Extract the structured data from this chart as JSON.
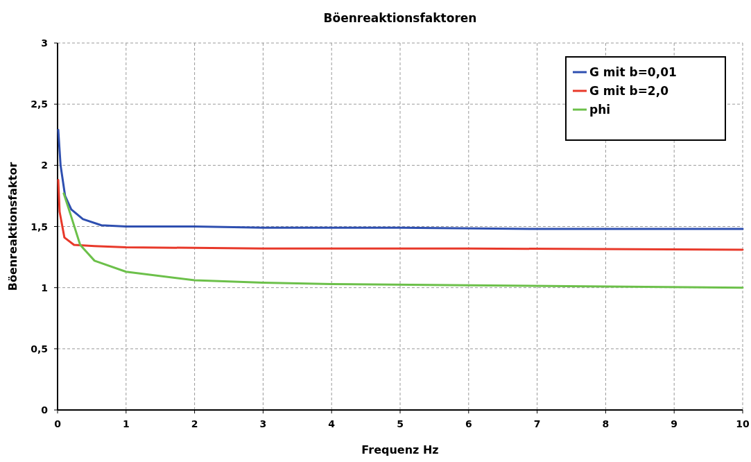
{
  "chart_data": {
    "type": "line",
    "title": "Böenreaktionsfaktoren",
    "xlabel": "Frequenz Hz",
    "ylabel": "Böenreaktionsfaktor",
    "xlim": [
      0,
      10
    ],
    "ylim": [
      0,
      3
    ],
    "xticks": [
      0,
      1,
      2,
      3,
      4,
      5,
      6,
      7,
      8,
      9,
      10
    ],
    "yticks": [
      {
        "value": 0,
        "label": "0"
      },
      {
        "value": 0.5,
        "label": "0,5"
      },
      {
        "value": 1,
        "label": "1"
      },
      {
        "value": 1.5,
        "label": "1,5"
      },
      {
        "value": 2,
        "label": "2"
      },
      {
        "value": 2.5,
        "label": "2,5"
      },
      {
        "value": 3,
        "label": "3"
      }
    ],
    "grid": true,
    "legend": "top right",
    "line_style": "solid",
    "series": [
      {
        "name": "G mit b=0,01",
        "color": "#2e4fb0",
        "x": [
          0.01,
          0.044,
          0.11,
          0.2,
          0.37,
          0.64,
          1,
          2,
          3,
          5,
          7,
          10
        ],
        "values": [
          2.29,
          2.0,
          1.75,
          1.64,
          1.56,
          1.51,
          1.5,
          1.5,
          1.49,
          1.49,
          1.48,
          1.48
        ]
      },
      {
        "name": "G mit b=2,0",
        "color": "#e8392a",
        "x": [
          0.01,
          0.03,
          0.1,
          0.24,
          0.54,
          1,
          3,
          6,
          10
        ],
        "values": [
          1.88,
          1.62,
          1.41,
          1.35,
          1.34,
          1.33,
          1.32,
          1.32,
          1.31
        ]
      },
      {
        "name": "phi",
        "color": "#6cc04a",
        "x": [
          0.09,
          0.2,
          0.33,
          0.54,
          1,
          2,
          3,
          4,
          6,
          8,
          10
        ],
        "values": [
          1.77,
          1.58,
          1.35,
          1.22,
          1.13,
          1.06,
          1.04,
          1.03,
          1.02,
          1.01,
          1.0
        ]
      }
    ]
  }
}
